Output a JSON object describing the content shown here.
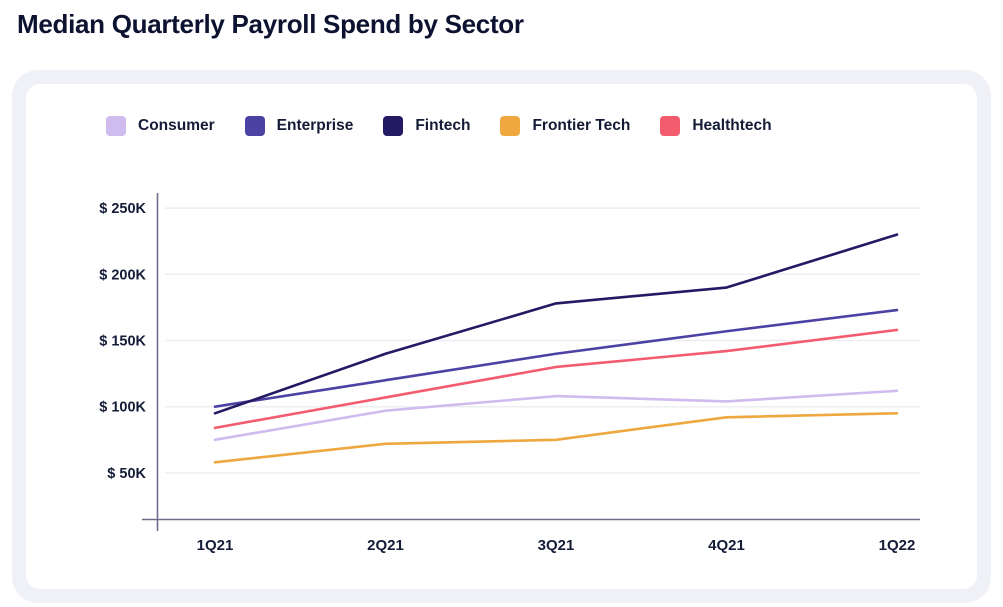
{
  "page": {
    "title": "Median Quarterly Payroll Spend by Sector"
  },
  "chart_data": {
    "type": "line",
    "title": "Median Quarterly Payroll Spend by Sector",
    "categories": [
      "1Q21",
      "2Q21",
      "3Q21",
      "4Q21",
      "1Q22"
    ],
    "y_ticks": [
      "$ 250K",
      "$ 200K",
      "$ 150K",
      "$ 100K",
      "$ 50K"
    ],
    "y_tick_values": [
      250000,
      200000,
      150000,
      100000,
      50000
    ],
    "ylim": [
      40000,
      265000
    ],
    "values_unit": "USD",
    "grid": "horizontal",
    "legend_position": "top",
    "series": [
      {
        "name": "Consumer",
        "color": "#d0bbee",
        "values": [
          75000,
          97000,
          108000,
          104000,
          112000
        ]
      },
      {
        "name": "Enterprise",
        "color": "#4c42a3",
        "values": [
          100000,
          120000,
          140000,
          157000,
          173000
        ]
      },
      {
        "name": "Fintech",
        "color": "#231a63",
        "values": [
          95000,
          140000,
          178000,
          190000,
          230000
        ]
      },
      {
        "name": "Frontier Tech",
        "color": "#efa83f",
        "values": [
          58000,
          72000,
          75000,
          92000,
          95000
        ]
      },
      {
        "name": "Healthtech",
        "color": "#f25c6e",
        "values": [
          84000,
          107000,
          130000,
          142000,
          158000
        ]
      }
    ],
    "axis_color": "#6d6d8b",
    "gridline_color": "#ededf2"
  }
}
